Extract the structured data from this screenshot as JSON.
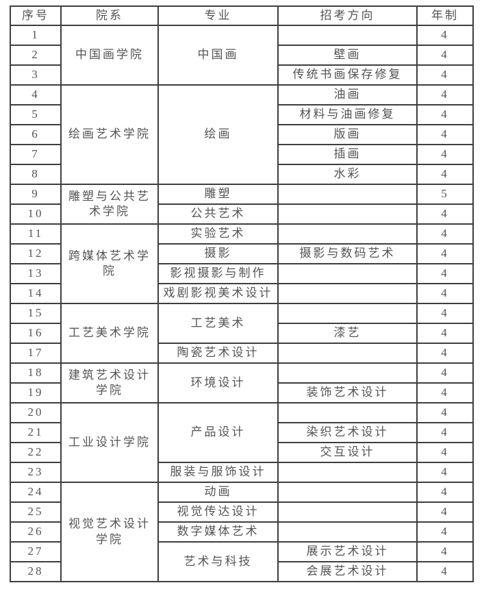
{
  "colors": {
    "text": "#545454",
    "border": "#3e3e3e",
    "bg": "#ffffff"
  },
  "table": {
    "headers": [
      "序号",
      "院系",
      "专业",
      "招考方向",
      "年制"
    ],
    "rows": [
      {
        "no": "1",
        "dept": {
          "text": "中国画学院",
          "span": 3
        },
        "major": {
          "text": "中国画",
          "span": 3
        },
        "direction": "",
        "years": "4"
      },
      {
        "no": "2",
        "direction": "壁画",
        "years": "4"
      },
      {
        "no": "3",
        "direction": "传统书画保存修复",
        "years": "4"
      },
      {
        "no": "4",
        "dept": {
          "text": "绘画艺术学院",
          "span": 5
        },
        "major": {
          "text": "绘画",
          "span": 5
        },
        "direction": "油画",
        "years": "4"
      },
      {
        "no": "5",
        "direction": "材料与油画修复",
        "years": "4"
      },
      {
        "no": "6",
        "direction": "版画",
        "years": "4"
      },
      {
        "no": "7",
        "direction": "插画",
        "years": "4"
      },
      {
        "no": "8",
        "direction": "水彩",
        "years": "4"
      },
      {
        "no": "9",
        "dept": {
          "text": "雕塑与公共艺术学院",
          "span": 2
        },
        "major": {
          "text": "雕塑",
          "span": 1
        },
        "direction": "",
        "years": "5"
      },
      {
        "no": "10",
        "major": {
          "text": "公共艺术",
          "span": 1
        },
        "direction": "",
        "years": "4"
      },
      {
        "no": "11",
        "dept": {
          "text": "跨媒体艺术学院",
          "span": 4
        },
        "major": {
          "text": "实验艺术",
          "span": 1
        },
        "direction": "",
        "years": "4"
      },
      {
        "no": "12",
        "major": {
          "text": "摄影",
          "span": 1
        },
        "direction": "摄影与数码艺术",
        "years": "4"
      },
      {
        "no": "13",
        "major": {
          "text": "影视摄影与制作",
          "span": 1
        },
        "direction": "",
        "years": "4"
      },
      {
        "no": "14",
        "major": {
          "text": "戏剧影视美术设计",
          "span": 1
        },
        "direction": "",
        "years": "4"
      },
      {
        "no": "15",
        "dept": {
          "text": "工艺美术学院",
          "span": 3
        },
        "major": {
          "text": "工艺美术",
          "span": 2
        },
        "direction": "",
        "years": "4"
      },
      {
        "no": "16",
        "direction": "漆艺",
        "years": "4"
      },
      {
        "no": "17",
        "major": {
          "text": "陶瓷艺术设计",
          "span": 1
        },
        "direction": "",
        "years": "4"
      },
      {
        "no": "18",
        "dept": {
          "text": "建筑艺术设计学院",
          "span": 2
        },
        "major": {
          "text": "环境设计",
          "span": 2
        },
        "direction": "",
        "years": "4"
      },
      {
        "no": "19",
        "direction": "装饰艺术设计",
        "years": "4"
      },
      {
        "no": "20",
        "dept": {
          "text": "工业设计学院",
          "span": 4
        },
        "major": {
          "text": "产品设计",
          "span": 3
        },
        "direction": "",
        "years": "4"
      },
      {
        "no": "21",
        "direction": "染织艺术设计",
        "years": "4"
      },
      {
        "no": "22",
        "direction": "交互设计",
        "years": "4"
      },
      {
        "no": "23",
        "major": {
          "text": "服装与服饰设计",
          "span": 1
        },
        "direction": "",
        "years": "4"
      },
      {
        "no": "24",
        "dept": {
          "text": "视觉艺术设计学院",
          "span": 5
        },
        "major": {
          "text": "动画",
          "span": 1
        },
        "direction": "",
        "years": "4"
      },
      {
        "no": "25",
        "major": {
          "text": "视觉传达设计",
          "span": 1
        },
        "direction": "",
        "years": "4"
      },
      {
        "no": "26",
        "major": {
          "text": "数字媒体艺术",
          "span": 1
        },
        "direction": "",
        "years": "4"
      },
      {
        "no": "27",
        "major": {
          "text": "艺术与科技",
          "span": 2
        },
        "direction": "展示艺术设计",
        "years": "4"
      },
      {
        "no": "28",
        "direction": "会展艺术设计",
        "years": "4"
      }
    ]
  }
}
